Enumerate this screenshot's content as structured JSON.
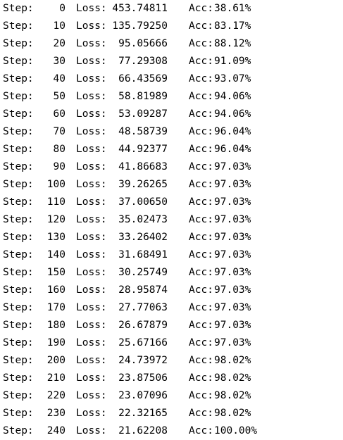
{
  "log": {
    "labels": {
      "step": "Step:",
      "loss": "Loss:",
      "acc": "Acc:"
    },
    "rows": [
      {
        "step": "0",
        "loss": "453.74811",
        "acc": "38.61%"
      },
      {
        "step": "10",
        "loss": "135.79250",
        "acc": "83.17%"
      },
      {
        "step": "20",
        "loss": "95.05666",
        "acc": "88.12%"
      },
      {
        "step": "30",
        "loss": "77.29308",
        "acc": "91.09%"
      },
      {
        "step": "40",
        "loss": "66.43569",
        "acc": "93.07%"
      },
      {
        "step": "50",
        "loss": "58.81989",
        "acc": "94.06%"
      },
      {
        "step": "60",
        "loss": "53.09287",
        "acc": "94.06%"
      },
      {
        "step": "70",
        "loss": "48.58739",
        "acc": "96.04%"
      },
      {
        "step": "80",
        "loss": "44.92377",
        "acc": "96.04%"
      },
      {
        "step": "90",
        "loss": "41.86683",
        "acc": "97.03%"
      },
      {
        "step": "100",
        "loss": "39.26265",
        "acc": "97.03%"
      },
      {
        "step": "110",
        "loss": "37.00650",
        "acc": "97.03%"
      },
      {
        "step": "120",
        "loss": "35.02473",
        "acc": "97.03%"
      },
      {
        "step": "130",
        "loss": "33.26402",
        "acc": "97.03%"
      },
      {
        "step": "140",
        "loss": "31.68491",
        "acc": "97.03%"
      },
      {
        "step": "150",
        "loss": "30.25749",
        "acc": "97.03%"
      },
      {
        "step": "160",
        "loss": "28.95874",
        "acc": "97.03%"
      },
      {
        "step": "170",
        "loss": "27.77063",
        "acc": "97.03%"
      },
      {
        "step": "180",
        "loss": "26.67879",
        "acc": "97.03%"
      },
      {
        "step": "190",
        "loss": "25.67166",
        "acc": "97.03%"
      },
      {
        "step": "200",
        "loss": "24.73972",
        "acc": "98.02%"
      },
      {
        "step": "210",
        "loss": "23.87506",
        "acc": "98.02%"
      },
      {
        "step": "220",
        "loss": "23.07096",
        "acc": "98.02%"
      },
      {
        "step": "230",
        "loss": "22.32165",
        "acc": "98.02%"
      },
      {
        "step": "240",
        "loss": "21.62208",
        "acc": "100.00%"
      }
    ]
  }
}
